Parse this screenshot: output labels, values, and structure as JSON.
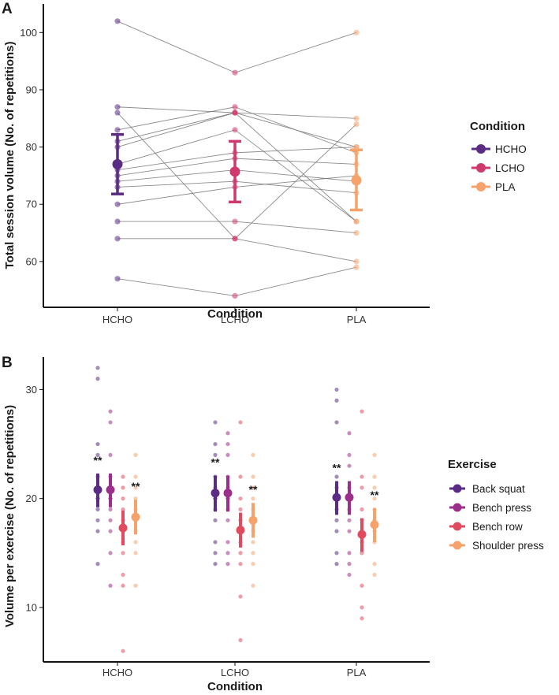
{
  "colors": {
    "HCHO": "#5b2c83",
    "LCHO": "#cf3a6e",
    "PLA": "#f6a36b",
    "back_squat": "#5b2c83",
    "bench_press": "#9c2f8a",
    "bench_row": "#e14b5f",
    "shoulder_press": "#f6a36b",
    "line": "#777777",
    "axis": "#111111"
  },
  "chart_data": [
    {
      "panel": "A",
      "type": "scatter",
      "xlabel": "Condition",
      "ylabel": "Total session volume (No. of repetitions)",
      "categories": [
        "HCHO",
        "LCHO",
        "PLA"
      ],
      "ylim": [
        52,
        105
      ],
      "yticks": [
        "60",
        "70",
        "80",
        "90",
        "100"
      ],
      "legend_title": "Condition",
      "legend": [
        "HCHO",
        "LCHO",
        "PLA"
      ],
      "legend_position": "right",
      "participants": [
        [
          102,
          93,
          100
        ],
        [
          87,
          86,
          85
        ],
        [
          86,
          64,
          84
        ],
        [
          83,
          87,
          79
        ],
        [
          81,
          86,
          67
        ],
        [
          80,
          86,
          80
        ],
        [
          77,
          83,
          67
        ],
        [
          76,
          79,
          80
        ],
        [
          75,
          78,
          77
        ],
        [
          74,
          76,
          74
        ],
        [
          73,
          74,
          72
        ],
        [
          70,
          73,
          75
        ],
        [
          67,
          67,
          65
        ],
        [
          64,
          64,
          60
        ],
        [
          57,
          54,
          59
        ]
      ],
      "means": [
        77,
        75.7,
        74.2
      ],
      "err_low": [
        71.8,
        70.4,
        69
      ],
      "err_high": [
        82.2,
        81,
        79.5
      ]
    },
    {
      "panel": "B",
      "type": "scatter",
      "xlabel": "Condition",
      "ylabel": "Volume per exercise (No. of repetitions)",
      "categories": [
        "HCHO",
        "LCHO",
        "PLA"
      ],
      "ylim": [
        5,
        33
      ],
      "yticks": [
        "10",
        "20",
        "30"
      ],
      "legend_title": "Exercise",
      "legend_position": "right",
      "significance": "**",
      "series": [
        {
          "name": "Back squat",
          "means": [
            20.8,
            20.5,
            20.1
          ],
          "err_low": [
            19.2,
            18.8,
            18.5
          ],
          "err_high": [
            22.3,
            22.1,
            21.6
          ],
          "points": [
            [
              32,
              31,
              25,
              24,
              22,
              21,
              20,
              20,
              19,
              18,
              17,
              14
            ],
            [
              27,
              25,
              24,
              22,
              21,
              20,
              20,
              19,
              18,
              16,
              15,
              14
            ],
            [
              30,
              29,
              27,
              22,
              21,
              20,
              20,
              19,
              18,
              17,
              15,
              14
            ]
          ]
        },
        {
          "name": "Bench press",
          "means": [
            20.8,
            20.5,
            20.1
          ],
          "err_low": [
            19.2,
            18.8,
            18.5
          ],
          "err_high": [
            22.3,
            22.1,
            21.6
          ],
          "points": [
            [
              28,
              27,
              24,
              22,
              21,
              20,
              20,
              19,
              18,
              17,
              15,
              12
            ],
            [
              26,
              25,
              24,
              22,
              21,
              20,
              20,
              19,
              18,
              16,
              15,
              14
            ],
            [
              26,
              24,
              23,
              21,
              20,
              20,
              19,
              18,
              17,
              15,
              14,
              13
            ]
          ]
        },
        {
          "name": "Bench row",
          "means": [
            17.3,
            17.1,
            16.7
          ],
          "err_low": [
            15.7,
            15.5,
            15.1
          ],
          "err_high": [
            18.9,
            18.7,
            18.2
          ],
          "points": [
            [
              22,
              21,
              20,
              19,
              18,
              17,
              17,
              16,
              15,
              13,
              12,
              6
            ],
            [
              27,
              22,
              20,
              19,
              18,
              17,
              17,
              16,
              15,
              14,
              11,
              7
            ],
            [
              28,
              22,
              21,
              19,
              18,
              17,
              17,
              16,
              15,
              12,
              10,
              9
            ]
          ]
        },
        {
          "name": "Shoulder press",
          "means": [
            18.3,
            18.0,
            17.6
          ],
          "err_low": [
            16.7,
            16.4,
            16.0
          ],
          "err_high": [
            19.9,
            19.6,
            19.1
          ],
          "points": [
            [
              24,
              22,
              21,
              20,
              19,
              18,
              18,
              17,
              16,
              15,
              12
            ],
            [
              24,
              22,
              21,
              20,
              19,
              18,
              18,
              17,
              16,
              15,
              14,
              12
            ],
            [
              24,
              22,
              21,
              20,
              19,
              18,
              18,
              17,
              16,
              14,
              13
            ]
          ]
        }
      ]
    }
  ]
}
